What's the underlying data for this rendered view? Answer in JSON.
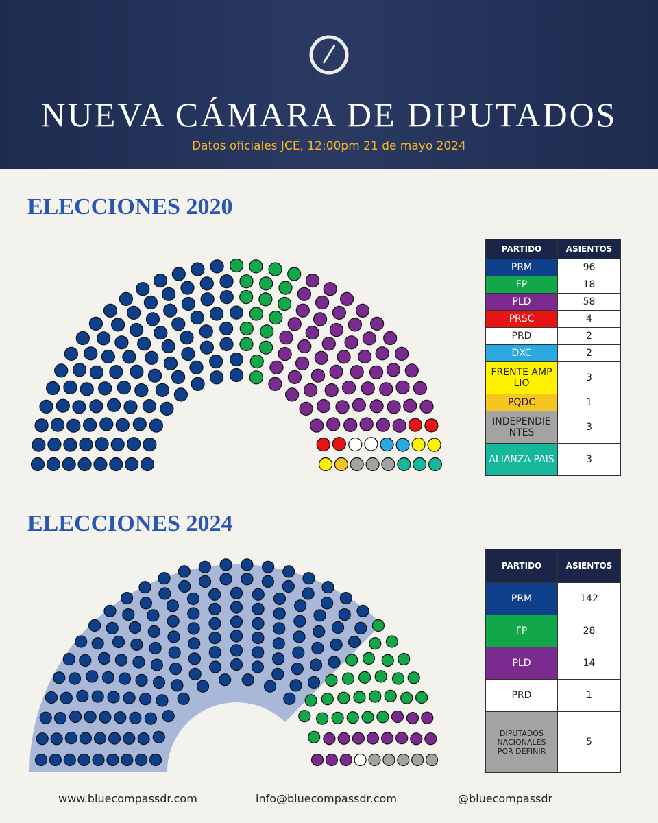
{
  "header": {
    "title": "NUEVA CÁMARA DE DIPUTADOS",
    "subtitle": "Datos oficiales JCE, 12:00pm 21 de mayo 2024"
  },
  "chart_data": [
    {
      "type": "parliament",
      "title": "ELECCIONES 2020",
      "table_headers": [
        "PARTIDO",
        "ASIENTOS"
      ],
      "categories": [
        "PRM",
        "FP",
        "PLD",
        "PRSC",
        "PRD",
        "DXC",
        "FRENTE AMPLIO",
        "PQDC",
        "INDEPENDIENTES",
        "ALIANZA PAIS"
      ],
      "values": [
        96,
        18,
        58,
        4,
        2,
        2,
        3,
        1,
        3,
        3
      ],
      "colors": [
        "#0d3f8a",
        "#12a84a",
        "#7b2a8f",
        "#e81414",
        "#ffffff",
        "#2aa8e0",
        "#fff200",
        "#f7c520",
        "#a3a3a3",
        "#17b79b"
      ]
    },
    {
      "type": "parliament",
      "title": "ELECCIONES 2024",
      "table_headers": [
        "PARTIDO",
        "ASIENTOS"
      ],
      "categories": [
        "PRM",
        "FP",
        "PLD",
        "PRD",
        "DIPUTADOS NACIONALES POR DEFINIR"
      ],
      "values": [
        142,
        28,
        14,
        1,
        5
      ],
      "colors": [
        "#0d3f8a",
        "#12a84a",
        "#7b2a8f",
        "#ffffff",
        "#a3a3a3"
      ],
      "highlight": "PRM"
    }
  ],
  "footer": [
    "www.bluecompassdr.com",
    "info@bluecompassdr.com",
    "@bluecompassdr"
  ]
}
